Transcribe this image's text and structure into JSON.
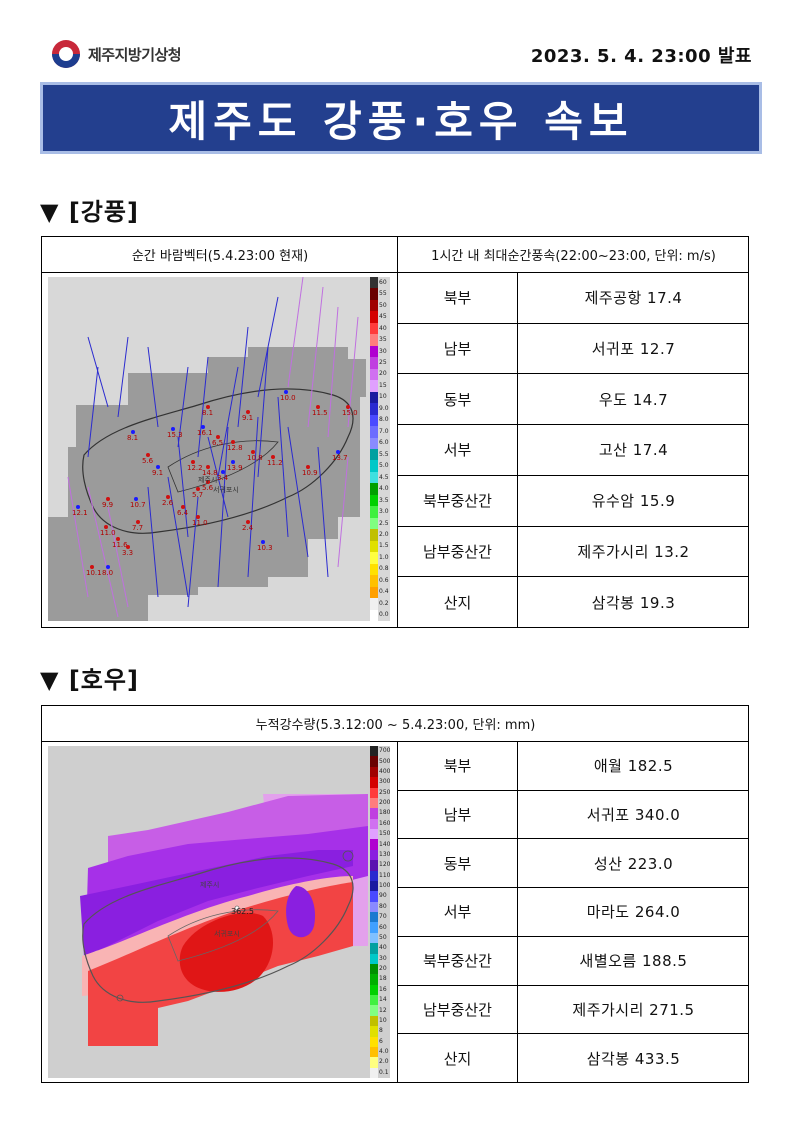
{
  "agency": {
    "name": "제주지방기상청"
  },
  "issue_datetime": "2023. 5. 4. 23:00 발표",
  "title": "제주도 강풍·호우 속보",
  "wind": {
    "heading": "▼ [강풍]",
    "map_caption": "순간 바람벡터(5.4.23:00 현재)",
    "table_caption": "1시간 내 최대순간풍속(22:00~23:00, 단위: m/s)",
    "rows": [
      {
        "region": "북부",
        "value": "제주공항 17.4"
      },
      {
        "region": "남부",
        "value": "서귀포 12.7"
      },
      {
        "region": "동부",
        "value": "우도 14.7"
      },
      {
        "region": "서부",
        "value": "고산 17.4"
      },
      {
        "region": "북부중산간",
        "value": "유수암 15.9"
      },
      {
        "region": "남부중산간",
        "value": "제주가시리 13.2"
      },
      {
        "region": "산지",
        "value": "삼각봉 19.3"
      }
    ],
    "scale_labels": [
      "60",
      "55",
      "50",
      "45",
      "40",
      "35",
      "30",
      "25",
      "20",
      "15",
      "10",
      "9.0",
      "8.0",
      "7.0",
      "6.0",
      "5.5",
      "5.0",
      "4.5",
      "4.0",
      "3.5",
      "3.0",
      "2.5",
      "2.0",
      "1.5",
      "1.0",
      "0.8",
      "0.6",
      "0.4",
      "0.2",
      "0.0"
    ],
    "station_labels": [
      "12.1",
      "9.9",
      "10.1",
      "10.7",
      "11.6",
      "11.0",
      "8.1",
      "8.1",
      "9.1",
      "10.0",
      "11.5",
      "15.0",
      "15.3",
      "5.6",
      "6.5",
      "16.1",
      "12.8",
      "10.8",
      "9.1",
      "12.2",
      "14.8",
      "3.4",
      "5.6",
      "5.7",
      "13.9",
      "11.2",
      "10.9",
      "13.7",
      "11.0",
      "7.7",
      "8.0",
      "3.3",
      "2.4",
      "10.3",
      "2.6",
      "6.4"
    ],
    "place_labels": [
      "제주시",
      "서귀포시"
    ]
  },
  "rain": {
    "heading": "▼ [호우]",
    "caption": "누적강수량(5.3.12:00 ~ 5.4.23:00, 단위: mm)",
    "rows": [
      {
        "region": "북부",
        "value": "애월 182.5"
      },
      {
        "region": "남부",
        "value": "서귀포 340.0"
      },
      {
        "region": "동부",
        "value": "성산 223.0"
      },
      {
        "region": "서부",
        "value": "마라도 264.0"
      },
      {
        "region": "북부중산간",
        "value": "새별오름 188.5"
      },
      {
        "region": "남부중산간",
        "value": "제주가시리 271.5"
      },
      {
        "region": "산지",
        "value": "삼각봉 433.5"
      }
    ],
    "scale_labels": [
      "700",
      "500",
      "400",
      "300",
      "250",
      "200",
      "180",
      "160",
      "150",
      "140",
      "130",
      "120",
      "110",
      "100",
      "90",
      "80",
      "70",
      "60",
      "50",
      "40",
      "30",
      "20",
      "18",
      "16",
      "14",
      "12",
      "10",
      "8",
      "6",
      "4.0",
      "2.0",
      "0.1"
    ],
    "map_labels": [
      "362.5",
      "서귀포시",
      "제주시"
    ]
  },
  "colors": {
    "banner_bg": "#233f8e",
    "banner_border": "#a9bde6",
    "rain_max": "#e01616",
    "rain_high": "#f24444",
    "rain_violet": "#8a1fe0",
    "map_gray": "#9a9a9a"
  }
}
